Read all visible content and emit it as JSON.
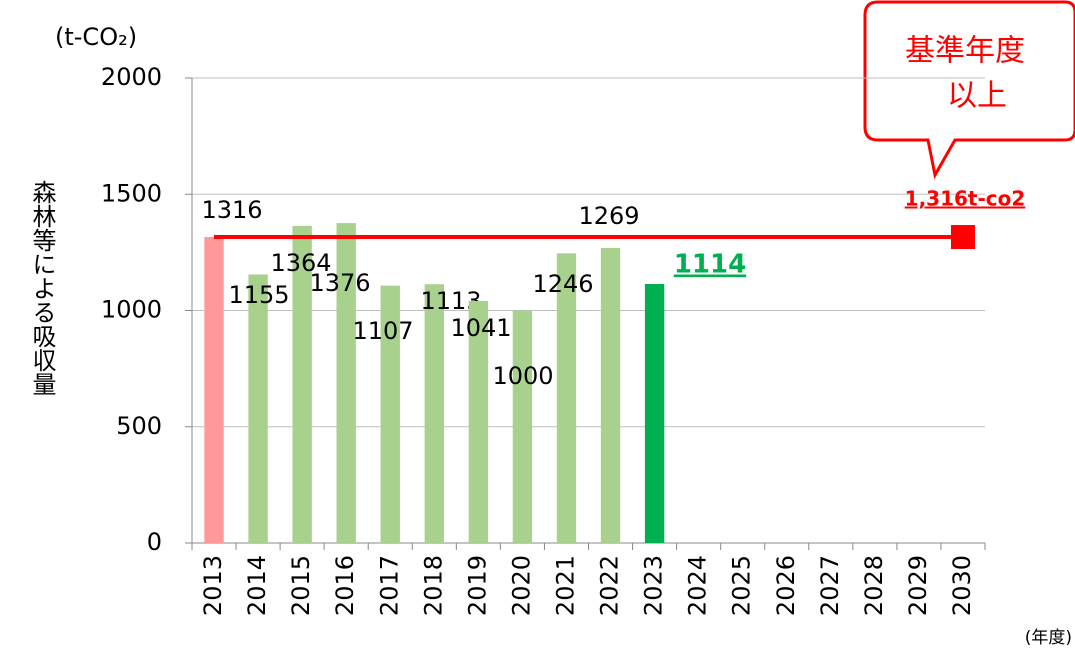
{
  "chart_data": {
    "type": "bar",
    "y_unit": "(t-CO₂)",
    "y_label": "森林等による吸収量",
    "x_unit": "(年度)",
    "categories": [
      "2013",
      "2014",
      "2015",
      "2016",
      "2017",
      "2018",
      "2019",
      "2020",
      "2021",
      "2022",
      "2023",
      "2024",
      "2025",
      "2026",
      "2027",
      "2028",
      "2029",
      "2030"
    ],
    "values": [
      1316,
      1155,
      1364,
      1376,
      1107,
      1113,
      1041,
      1000,
      1246,
      1269,
      1114,
      null,
      null,
      null,
      null,
      null,
      null,
      null
    ],
    "colors": [
      "#ff9999",
      "#a9d18e",
      "#a9d18e",
      "#a9d18e",
      "#a9d18e",
      "#a9d18e",
      "#a9d18e",
      "#a9d18e",
      "#a9d18e",
      "#a9d18e",
      "#00b050",
      null,
      null,
      null,
      null,
      null,
      null,
      null
    ],
    "target": 1316,
    "target_label": "1,316t-co2",
    "target_color": "#ff0000",
    "callout": [
      "基準年度",
      "以上"
    ],
    "ylim": [
      0,
      2000
    ],
    "yticks": [
      0,
      500,
      1000,
      1500,
      2000
    ],
    "grid": true
  }
}
